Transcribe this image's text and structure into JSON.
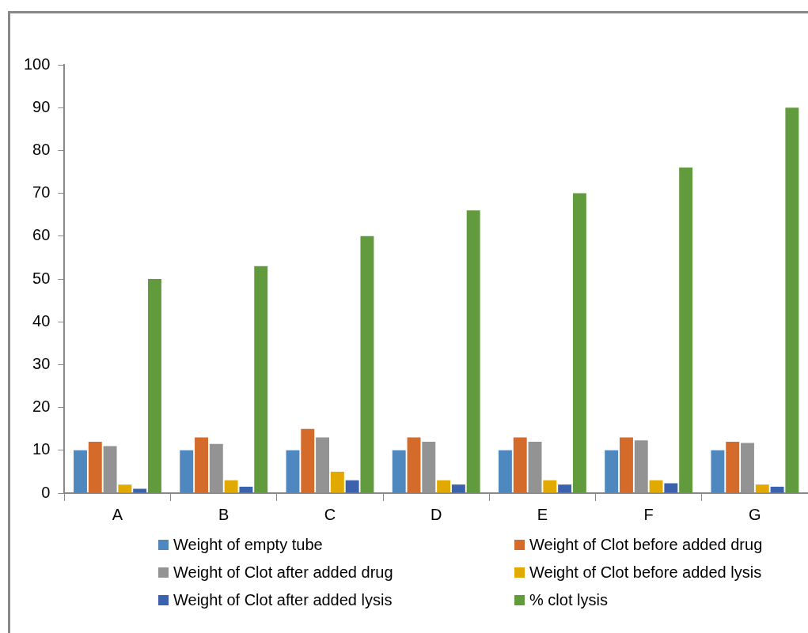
{
  "chart_data": {
    "type": "bar",
    "categories": [
      "A",
      "B",
      "C",
      "D",
      "E",
      "F",
      "G"
    ],
    "series": [
      {
        "name": "Weight of empty tube",
        "color": "#4f88be",
        "values": [
          10,
          10,
          10,
          10,
          10,
          10,
          10
        ]
      },
      {
        "name": "Weight of Clot before added drug",
        "color": "#d46b2a",
        "values": [
          12,
          13,
          15,
          13,
          13,
          13,
          12
        ]
      },
      {
        "name": "Weight of Clot after added drug",
        "color": "#939393",
        "values": [
          11,
          11.5,
          13,
          12,
          12,
          12.3,
          11.7
        ]
      },
      {
        "name": "Weight of Clot before added lysis",
        "color": "#e2aa00",
        "values": [
          2,
          3,
          5,
          3,
          3,
          3,
          2
        ]
      },
      {
        "name": "Weight of Clot after added lysis",
        "color": "#3a62ad",
        "values": [
          1,
          1.5,
          3,
          2,
          2,
          2.3,
          1.5
        ]
      },
      {
        "name": "% clot lysis",
        "color": "#629a3e",
        "values": [
          50,
          53,
          60,
          66,
          70,
          76,
          90
        ]
      }
    ],
    "ylim": [
      0,
      100
    ],
    "yticks": [
      0,
      10,
      20,
      30,
      40,
      50,
      60,
      70,
      80,
      90,
      100
    ],
    "grid": false,
    "legend": "bottom"
  }
}
